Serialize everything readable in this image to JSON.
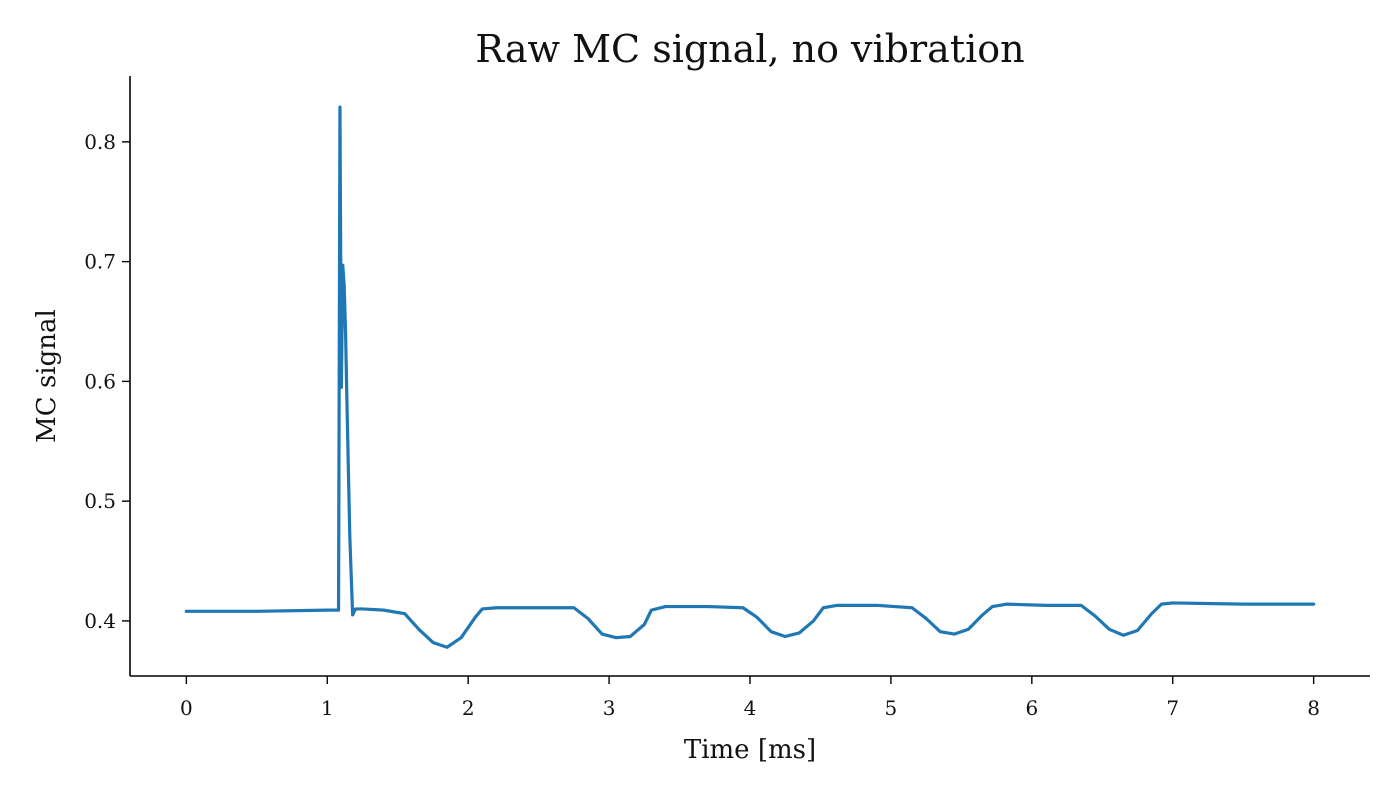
{
  "chart_data": {
    "type": "line",
    "title": "Raw MC signal, no vibration",
    "xlabel": "Time [ms]",
    "ylabel": "MC signal",
    "xlim": [
      -0.4,
      8.4
    ],
    "ylim": [
      0.354,
      0.855
    ],
    "xticks": [
      0,
      1,
      2,
      3,
      4,
      5,
      6,
      7,
      8
    ],
    "yticks": [
      0.4,
      0.5,
      0.6,
      0.7,
      0.8
    ],
    "ytick_labels": [
      "0.4",
      "0.5",
      "0.6",
      "0.7",
      "0.8"
    ],
    "grid": false,
    "color": "#1f77b4",
    "series": [
      {
        "x": [
          0,
          0.5,
          1.0,
          1.08,
          1.09,
          1.1,
          1.11,
          1.12,
          1.13,
          1.14,
          1.16,
          1.18,
          1.2,
          1.25,
          1.4,
          1.55,
          1.65,
          1.75,
          1.85,
          1.95,
          2.05,
          2.1,
          2.2,
          2.5,
          2.75,
          2.85,
          2.95,
          3.05,
          3.15,
          3.25,
          3.3,
          3.4,
          3.7,
          3.95,
          4.05,
          4.15,
          4.25,
          4.35,
          4.45,
          4.52,
          4.62,
          4.9,
          5.15,
          5.25,
          5.35,
          5.45,
          5.55,
          5.65,
          5.72,
          5.82,
          6.1,
          6.35,
          6.45,
          6.55,
          6.65,
          6.75,
          6.85,
          6.92,
          7.0,
          7.5,
          8.0
        ],
        "y": [
          0.408,
          0.408,
          0.409,
          0.409,
          0.829,
          0.595,
          0.697,
          0.68,
          0.64,
          0.58,
          0.47,
          0.405,
          0.41,
          0.41,
          0.409,
          0.406,
          0.393,
          0.382,
          0.378,
          0.386,
          0.403,
          0.41,
          0.411,
          0.411,
          0.411,
          0.402,
          0.389,
          0.386,
          0.387,
          0.397,
          0.409,
          0.412,
          0.412,
          0.411,
          0.403,
          0.391,
          0.387,
          0.39,
          0.4,
          0.411,
          0.413,
          0.413,
          0.411,
          0.402,
          0.391,
          0.389,
          0.393,
          0.405,
          0.412,
          0.414,
          0.413,
          0.413,
          0.404,
          0.393,
          0.388,
          0.392,
          0.406,
          0.414,
          0.415,
          0.414,
          0.414
        ]
      }
    ]
  }
}
